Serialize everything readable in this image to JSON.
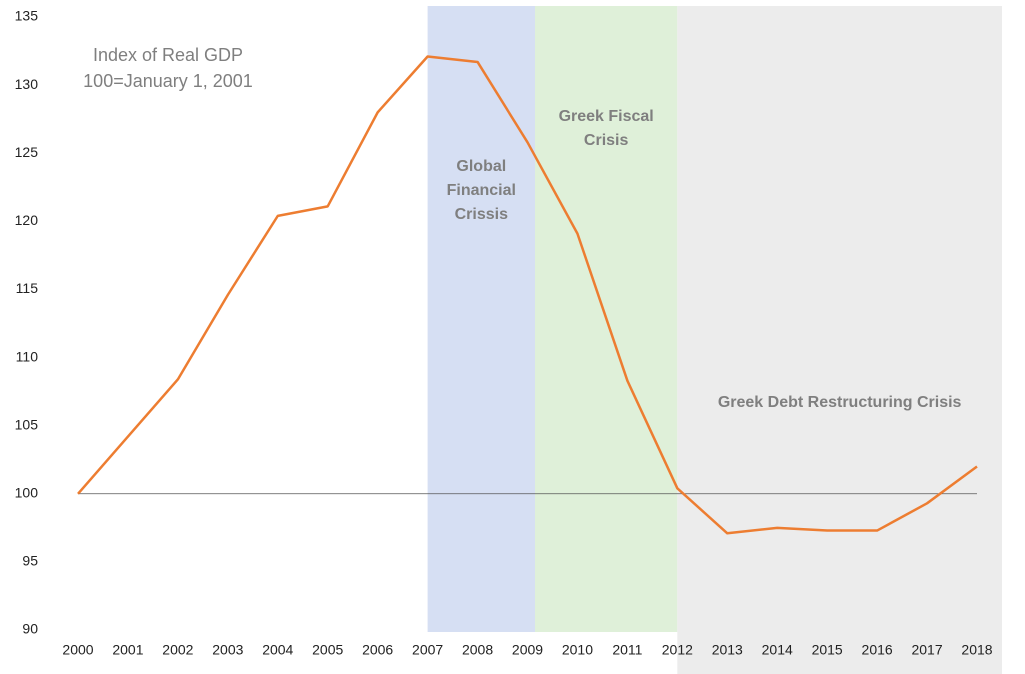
{
  "chart_data": {
    "type": "line",
    "title": "Index of Real GDP",
    "subtitle": "100=January 1, 2001",
    "x": [
      2000,
      2001,
      2002,
      2003,
      2004,
      2005,
      2006,
      2007,
      2008,
      2009,
      2010,
      2011,
      2012,
      2013,
      2014,
      2015,
      2016,
      2017,
      2018
    ],
    "series": [
      {
        "name": "Real GDP",
        "color": "#ed7d31",
        "values": [
          100,
          104.2,
          108.4,
          114.6,
          120.4,
          121.1,
          128,
          132.1,
          131.7,
          125.8,
          119.1,
          108.3,
          100.4,
          97.1,
          97.5,
          97.3,
          97.3,
          99.3,
          102
        ]
      }
    ],
    "xlim": [
      2000,
      2018
    ],
    "xticks": [
      2000,
      2001,
      2002,
      2003,
      2004,
      2005,
      2006,
      2007,
      2008,
      2009,
      2010,
      2011,
      2012,
      2013,
      2014,
      2015,
      2016,
      2017,
      2018
    ],
    "ylim": [
      90,
      135
    ],
    "yticks": [
      90,
      95,
      100,
      105,
      110,
      115,
      120,
      125,
      130,
      135
    ],
    "reference_line": 100,
    "regions": [
      {
        "label": [
          "Global",
          "Financial",
          "Crissis"
        ],
        "start": 2007,
        "end": 2009.15,
        "color": "#d6dff3"
      },
      {
        "label": [
          "Greek Fiscal",
          "Crisis"
        ],
        "start": 2009.15,
        "end": 2012,
        "color": "#dff0d9"
      },
      {
        "label": [
          "Greek Debt Restructuring Crisis"
        ],
        "start": 2012,
        "end": 2018.5,
        "color": "#ececec"
      }
    ]
  }
}
